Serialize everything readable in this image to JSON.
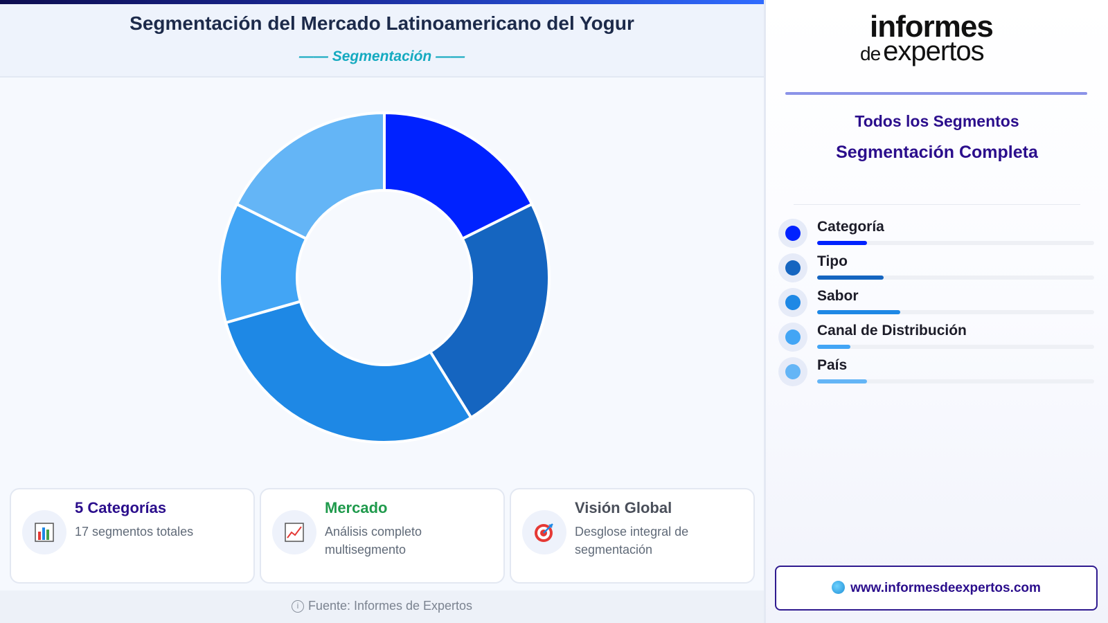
{
  "header": {
    "title": "Segmentación del Mercado Latinoamericano del Yogur",
    "subtitle": "—— Segmentación ——"
  },
  "chart_data": {
    "type": "pie",
    "variant": "donut",
    "categories": [
      "Categoría",
      "Tipo",
      "Sabor",
      "Canal de Distribución",
      "País"
    ],
    "values": [
      3,
      4,
      5,
      2,
      3
    ],
    "colors": [
      "#0022ff",
      "#1565c0",
      "#1e88e5",
      "#42a5f5",
      "#64b5f6"
    ],
    "total": 17
  },
  "cards": [
    {
      "title": "5 Categorías",
      "text": "17 segmentos totales",
      "title_color": "#2b0e8c",
      "icon": "bar-chart-icon"
    },
    {
      "title": "Mercado",
      "text": "Análisis completo multisegmento",
      "title_color": "#1f9a4c",
      "icon": "trend-chart-icon"
    },
    {
      "title": "Visión Global",
      "text": "Desglose integral de segmentación",
      "title_color": "#4a4f5a",
      "icon": "target-icon"
    }
  ],
  "footer": {
    "source": "Fuente: Informes de Expertos"
  },
  "brand": {
    "top": "informes",
    "de": "de",
    "bottom": "expertos"
  },
  "sidebar": {
    "title1": "Todos los Segmentos",
    "title2": "Segmentación Completa",
    "url": "www.informesdeexpertos.com"
  }
}
